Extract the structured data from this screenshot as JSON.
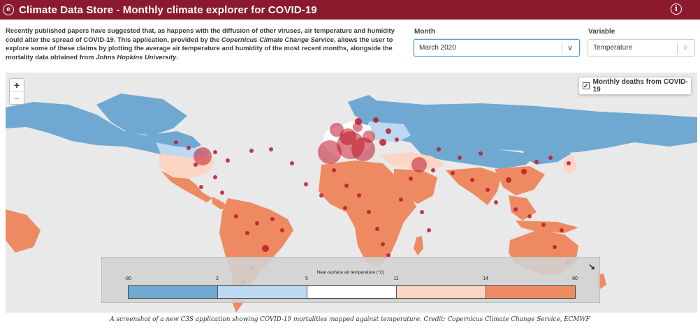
{
  "header": {
    "title": "Climate Data Store - Monthly climate explorer for COVID-19",
    "logo_icon": "ecmwf-logo-icon",
    "info_icon": "info-icon",
    "color": "#8b1a2e"
  },
  "intro": {
    "p1": "Recently published papers have suggested that, as happens with the diffusion of other viruses, air temperature and humidity could alter the spread of COVID-19. This application, provided by the ",
    "p1_italic": "Copernicus Climate Change Service",
    "p2": ", allows the user to explore some of these claims by plotting the average air temperature and humidity of the most recent months, alongside the mortality data obtained from ",
    "p2_italic": "Johns Hopkins University",
    "p3": "."
  },
  "controls": {
    "month_label": "Month",
    "month_value": "March 2020",
    "variable_label": "Variable",
    "variable_value": "Temperature"
  },
  "map": {
    "zoom_in": "+",
    "zoom_out": "−",
    "layer_label": "Monthly deaths from COVID-19",
    "layer_checked": true,
    "ocean_color": "#e9e9e9",
    "bubble_color": "#c0182c"
  },
  "legend": {
    "title": "Near-surface air temperature (°C)",
    "ticks": [
      "-80",
      "2",
      "5",
      "11",
      "14",
      "80"
    ],
    "colors": [
      "#6fa9d2",
      "#bcd9f2",
      "#ffffff",
      "#fcd5c4",
      "#ee8a62"
    ],
    "resize_icon": "↘"
  },
  "caption": "A screenshot of a new C3S application showing COVID-19 mortalities mapped against temperature. Credit: Copernicus Climate Change Service, ECMWF"
}
